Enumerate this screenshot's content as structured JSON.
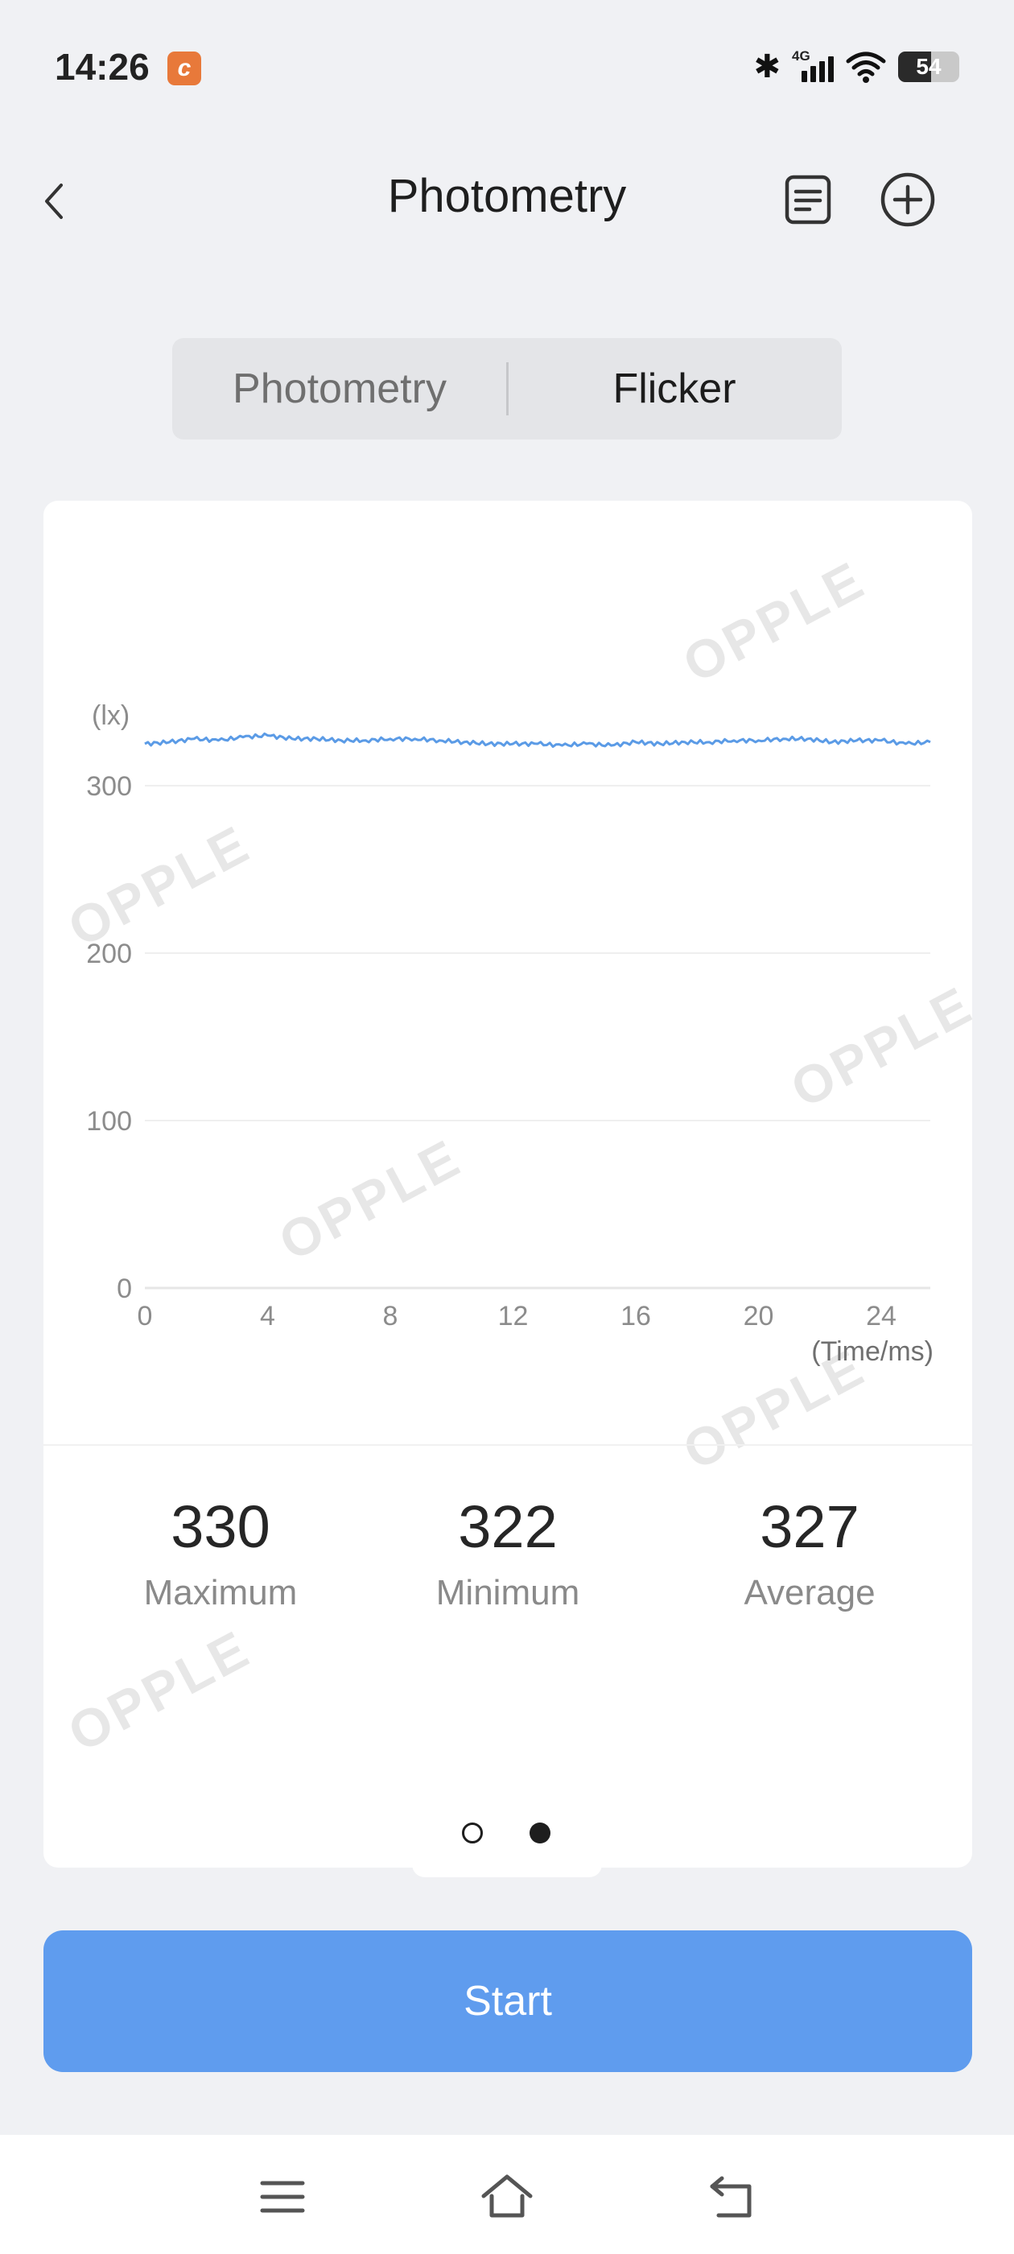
{
  "status_bar": {
    "time": "14:26",
    "app_badge": "c",
    "network": "4G",
    "battery": "54",
    "icons": [
      "bluetooth-icon",
      "signal-icon",
      "wifi-icon",
      "battery-icon"
    ]
  },
  "header": {
    "title": "Photometry",
    "icons": [
      "back-icon",
      "document-icon",
      "add-circle-icon"
    ]
  },
  "segmented": {
    "options": [
      "Photometry",
      "Flicker"
    ],
    "selected": "Flicker"
  },
  "chart_data": {
    "type": "line",
    "ylabel": "(lx)",
    "xlabel": "(Time/ms)",
    "y_ticks": [
      0,
      100,
      200,
      300
    ],
    "x_ticks": [
      0,
      4,
      8,
      12,
      16,
      20,
      24
    ],
    "xlim": [
      0,
      25.6
    ],
    "ylim": [
      0,
      350
    ],
    "grid": true,
    "color": "#5b9be6",
    "series": [
      {
        "x": [
          0,
          0.8,
          1.6,
          2.4,
          3.2,
          4,
          4.8,
          5.6,
          6.4,
          7.2,
          8,
          8.8,
          9.6,
          10.4,
          11.2,
          12,
          12.8,
          13.6,
          14.4,
          15.2,
          16,
          16.8,
          17.6,
          18.4,
          19.2,
          20,
          20.8,
          21.6,
          22.4,
          23.2,
          24,
          24.8,
          25.6
        ],
        "values": [
          325,
          326,
          328,
          327,
          329,
          330,
          328,
          328,
          327,
          327,
          328,
          328,
          327,
          326,
          325,
          325,
          325,
          324,
          325,
          324,
          326,
          325,
          326,
          326,
          327,
          327,
          328,
          328,
          326,
          327,
          327,
          325,
          326
        ]
      }
    ]
  },
  "stats": [
    {
      "value": "330",
      "label": "Maximum"
    },
    {
      "value": "322",
      "label": "Minimum"
    },
    {
      "value": "327",
      "label": "Average"
    }
  ],
  "watermark": "OPPLE",
  "pager": {
    "pages": 2,
    "current": 2
  },
  "start_button": "Start",
  "nav": {
    "icons": [
      "menu-icon",
      "home-icon",
      "back-nav-icon"
    ]
  }
}
